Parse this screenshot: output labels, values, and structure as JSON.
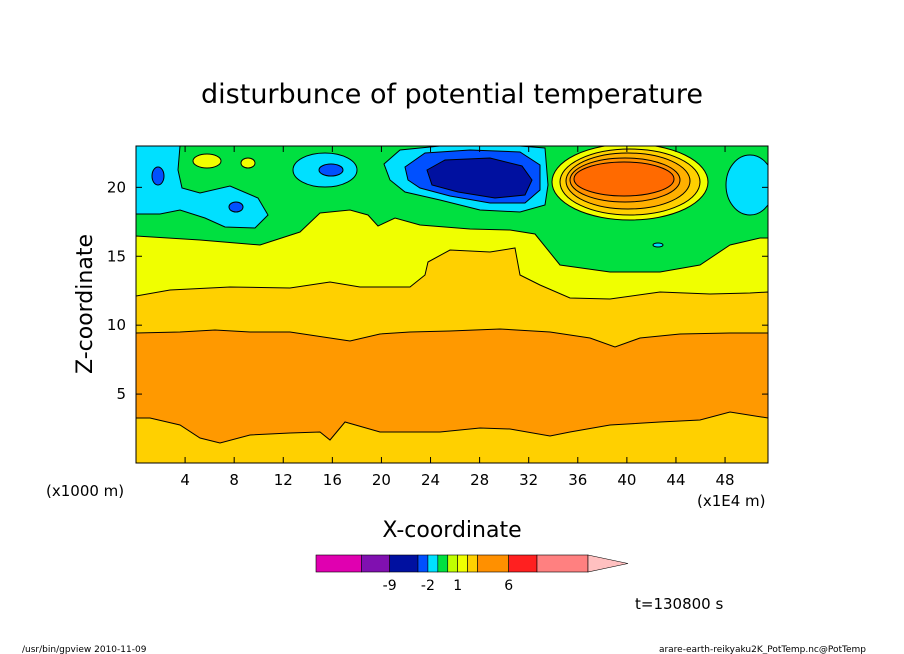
{
  "chart_data": {
    "type": "heatmap",
    "title": "disturbunce of potential temperature",
    "xlabel": "X-coordinate",
    "ylabel": "Z-coordinate",
    "x_unit": "(x1000 m)",
    "x_scale": "(x1E4 m)",
    "xlim": [
      0,
      51.5
    ],
    "ylim": [
      0,
      23
    ],
    "x_ticks": [
      "4",
      "8",
      "12",
      "16",
      "20",
      "24",
      "28",
      "32",
      "36",
      "40",
      "44",
      "48"
    ],
    "y_ticks": [
      "5",
      "10",
      "15",
      "20"
    ],
    "time_label": "t=130800 s",
    "colorbar": {
      "colors": [
        "#e000b0",
        "#8010b0",
        "#0010a0",
        "#0050ff",
        "#00e0ff",
        "#00e040",
        "#c0ff00",
        "#f0ff00",
        "#ffd000",
        "#ff9000",
        "#ff2020",
        "#ff8080",
        "#ffc0c0"
      ],
      "tick_labels": [
        "-9",
        "-2",
        "1",
        "6"
      ],
      "tick_values": [
        -9,
        -2,
        1,
        6
      ]
    }
  },
  "footer": {
    "left": "/usr/bin/gpview  2010-11-09",
    "right": "arare-earth-reikyaku2K_PotTemp.nc@PotTemp"
  }
}
